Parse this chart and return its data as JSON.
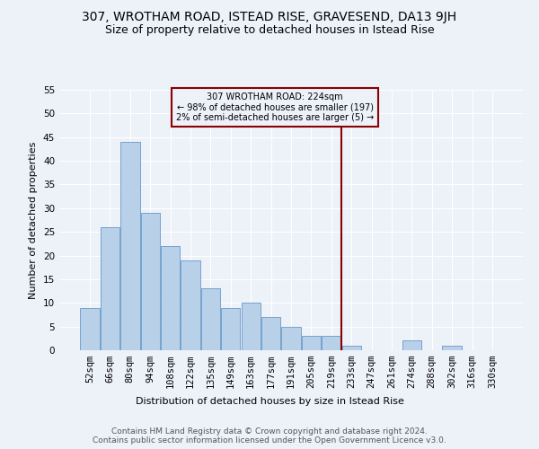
{
  "title": "307, WROTHAM ROAD, ISTEAD RISE, GRAVESEND, DA13 9JH",
  "subtitle": "Size of property relative to detached houses in Istead Rise",
  "xlabel": "Distribution of detached houses by size in Istead Rise",
  "ylabel": "Number of detached properties",
  "bar_labels": [
    "52sqm",
    "66sqm",
    "80sqm",
    "94sqm",
    "108sqm",
    "122sqm",
    "135sqm",
    "149sqm",
    "163sqm",
    "177sqm",
    "191sqm",
    "205sqm",
    "219sqm",
    "233sqm",
    "247sqm",
    "261sqm",
    "274sqm",
    "288sqm",
    "302sqm",
    "316sqm",
    "330sqm"
  ],
  "bar_values": [
    9,
    26,
    44,
    29,
    22,
    19,
    13,
    9,
    10,
    7,
    5,
    3,
    3,
    1,
    0,
    0,
    2,
    0,
    1,
    0,
    0
  ],
  "bar_color": "#b8d0e8",
  "bar_edgecolor": "#6699cc",
  "background_color": "#edf1f8",
  "vline_color": "#8b0000",
  "annotation_text": "307 WROTHAM ROAD: 224sqm\n← 98% of detached houses are smaller (197)\n2% of semi-detached houses are larger (5) →",
  "annotation_box_edgecolor": "#8b0000",
  "ylim": [
    0,
    55
  ],
  "yticks": [
    0,
    5,
    10,
    15,
    20,
    25,
    30,
    35,
    40,
    45,
    50,
    55
  ],
  "footer": "Contains HM Land Registry data © Crown copyright and database right 2024.\nContains public sector information licensed under the Open Government Licence v3.0.",
  "title_fontsize": 10,
  "subtitle_fontsize": 9,
  "ylabel_fontsize": 8,
  "xlabel_fontsize": 8,
  "tick_fontsize": 7.5,
  "annotation_fontsize": 7,
  "footer_fontsize": 6.5
}
